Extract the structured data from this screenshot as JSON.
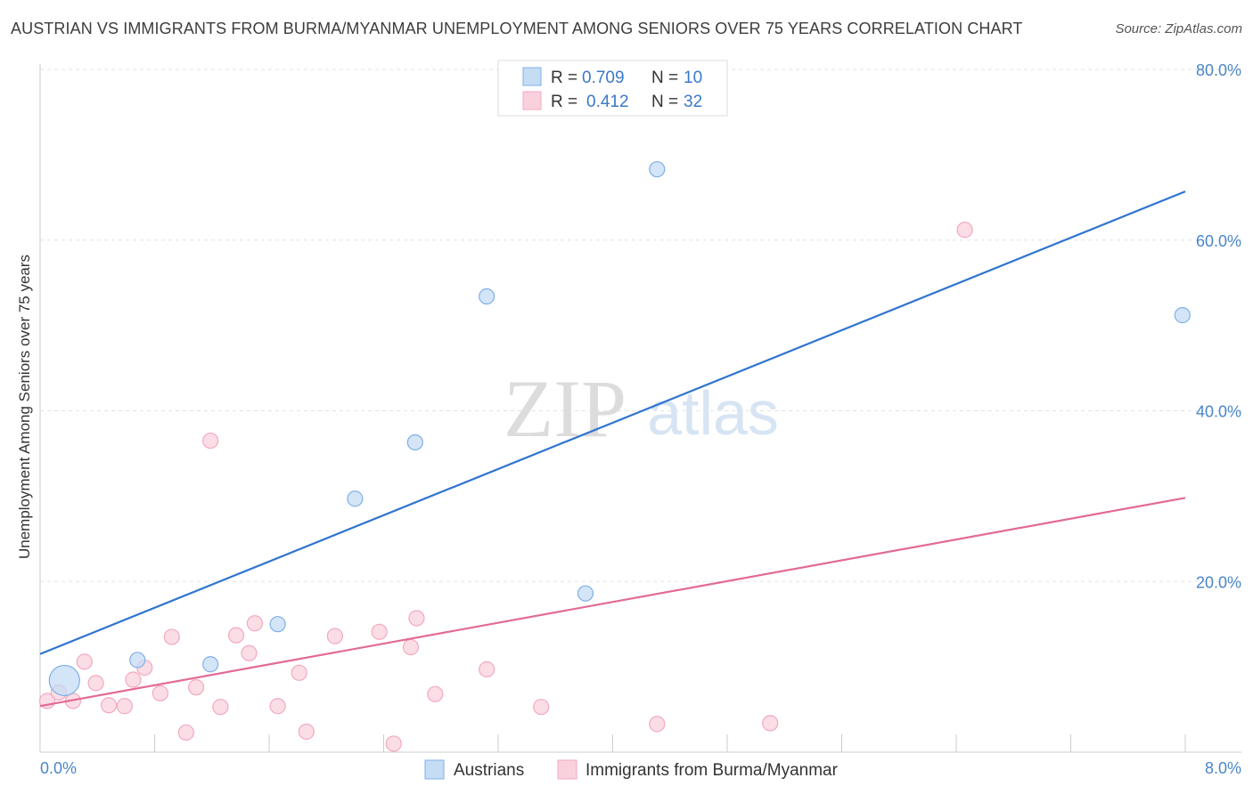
{
  "chart_data": {
    "type": "scatter",
    "title": "AUSTRIAN VS IMMIGRANTS FROM BURMA/MYANMAR UNEMPLOYMENT AMONG SENIORS OVER 75 YEARS CORRELATION CHART",
    "source": "Source: ZipAtlas.com",
    "xlabel": "",
    "ylabel": "Unemployment Among Seniors over 75 years",
    "xlim": [
      0,
      8
    ],
    "ylim": [
      0,
      80
    ],
    "x_tick_labels": [
      "0.0%",
      "8.0%"
    ],
    "y_tick_labels": [
      "20.0%",
      "40.0%",
      "60.0%",
      "80.0%"
    ],
    "y_ticks": [
      20,
      40,
      60,
      80
    ],
    "watermark": {
      "zip": "ZIP",
      "atlas": "atlas"
    },
    "legend": {
      "r_label": "R =",
      "n_label": "N =",
      "entries": [
        {
          "r": "0.709",
          "n": "10"
        },
        {
          "r": "0.412",
          "n": "32"
        }
      ]
    },
    "series": [
      {
        "name": "Austrians",
        "color": "#7fb0e8",
        "fill": "#c5dcf5",
        "line_color": "#2f74d0",
        "trend": {
          "x": [
            0,
            8
          ],
          "y": [
            11.5,
            65.7
          ]
        },
        "points": [
          {
            "x": 0.17,
            "y": 8.4,
            "big": true
          },
          {
            "x": 0.68,
            "y": 10.8
          },
          {
            "x": 1.19,
            "y": 10.3
          },
          {
            "x": 1.66,
            "y": 15.0
          },
          {
            "x": 2.2,
            "y": 29.7
          },
          {
            "x": 2.62,
            "y": 36.3
          },
          {
            "x": 3.12,
            "y": 53.4
          },
          {
            "x": 3.81,
            "y": 18.6
          },
          {
            "x": 4.31,
            "y": 68.3
          },
          {
            "x": 7.98,
            "y": 51.2
          }
        ]
      },
      {
        "name": "Immigrants from Burma/Myanmar",
        "color": "#f3a9bf",
        "fill": "#f9d1dd",
        "line_color": "#e26a95",
        "trend": {
          "x": [
            0,
            8
          ],
          "y": [
            5.4,
            29.8
          ]
        },
        "points": [
          {
            "x": 0.05,
            "y": 6.0
          },
          {
            "x": 0.13,
            "y": 7.0
          },
          {
            "x": 0.23,
            "y": 6.0
          },
          {
            "x": 0.31,
            "y": 10.6
          },
          {
            "x": 0.39,
            "y": 8.1
          },
          {
            "x": 0.48,
            "y": 5.5
          },
          {
            "x": 0.59,
            "y": 5.4
          },
          {
            "x": 0.65,
            "y": 8.5
          },
          {
            "x": 0.73,
            "y": 9.9
          },
          {
            "x": 0.84,
            "y": 6.9
          },
          {
            "x": 0.92,
            "y": 13.5
          },
          {
            "x": 1.02,
            "y": 2.3
          },
          {
            "x": 1.09,
            "y": 7.6
          },
          {
            "x": 1.19,
            "y": 36.5
          },
          {
            "x": 1.26,
            "y": 5.3
          },
          {
            "x": 1.37,
            "y": 13.7
          },
          {
            "x": 1.46,
            "y": 11.6
          },
          {
            "x": 1.5,
            "y": 15.1
          },
          {
            "x": 1.66,
            "y": 5.4
          },
          {
            "x": 1.81,
            "y": 9.3
          },
          {
            "x": 1.86,
            "y": 2.4
          },
          {
            "x": 2.06,
            "y": 13.6
          },
          {
            "x": 2.37,
            "y": 14.1
          },
          {
            "x": 2.47,
            "y": 1.0
          },
          {
            "x": 2.59,
            "y": 12.3
          },
          {
            "x": 2.63,
            "y": 15.7
          },
          {
            "x": 2.76,
            "y": 6.8
          },
          {
            "x": 3.12,
            "y": 9.7
          },
          {
            "x": 3.5,
            "y": 5.3
          },
          {
            "x": 4.31,
            "y": 3.3
          },
          {
            "x": 5.1,
            "y": 3.4
          },
          {
            "x": 6.46,
            "y": 61.2
          }
        ]
      }
    ]
  }
}
